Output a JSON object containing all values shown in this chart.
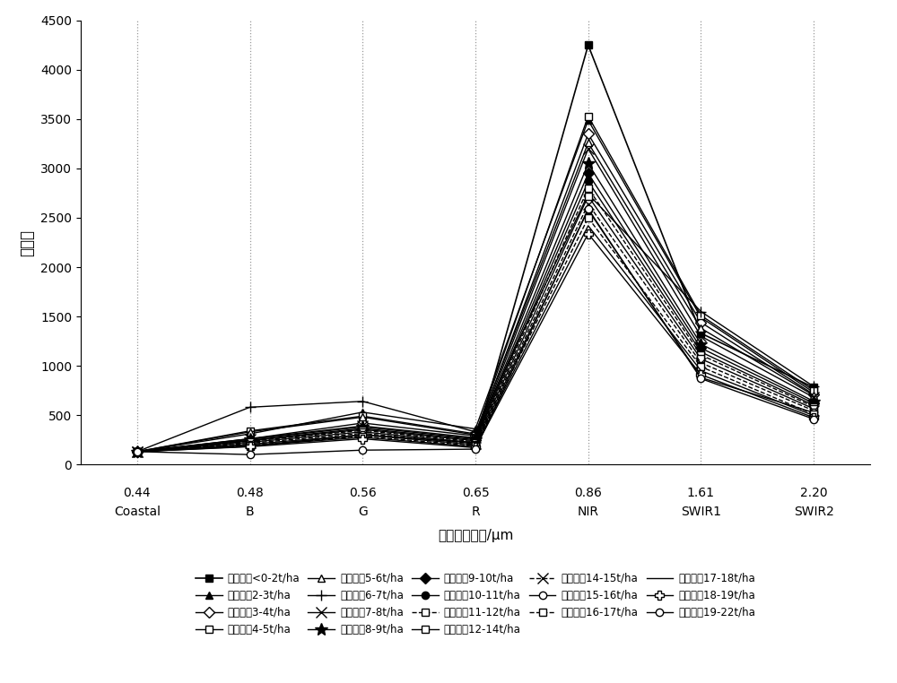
{
  "x_positions": [
    0,
    1,
    2,
    3,
    4,
    5,
    6
  ],
  "x_wavelengths": [
    "0.44",
    "0.48",
    "0.56",
    "0.65",
    "0.86",
    "1.61",
    "2.20"
  ],
  "x_bandnames": [
    "Coastal",
    "B",
    "G",
    "R",
    "NIR",
    "SWIR1",
    "SWIR2"
  ],
  "xlabel": "波段中心波长/μm",
  "ylabel": "反射率",
  "ylim": [
    0,
    4500
  ],
  "yticks": [
    0,
    500,
    1000,
    1500,
    2000,
    2500,
    3000,
    3500,
    4000,
    4500
  ],
  "series": [
    {
      "label": "叶生物量<0-2t/ha",
      "values": [
        130,
        185,
        300,
        220,
        4250,
        1330,
        780
      ],
      "marker": "s",
      "filled": true,
      "ls": "-",
      "lw": 1.2
    },
    {
      "label": "叶生物量2-3t/ha",
      "values": [
        130,
        310,
        530,
        360,
        3490,
        1490,
        730
      ],
      "marker": "^",
      "filled": true,
      "ls": "-",
      "lw": 1.0
    },
    {
      "label": "叶生物量3-4t/ha",
      "values": [
        130,
        260,
        420,
        290,
        3350,
        1440,
        710
      ],
      "marker": "D",
      "filled": false,
      "ls": "-",
      "lw": 1.0
    },
    {
      "label": "叶生物量4-5t/ha",
      "values": [
        130,
        340,
        490,
        310,
        3530,
        1510,
        750
      ],
      "marker": "s",
      "filled": false,
      "ls": "-",
      "lw": 1.0
    },
    {
      "label": "叶生物量5-6t/ha",
      "values": [
        130,
        330,
        480,
        300,
        3260,
        1380,
        700
      ],
      "marker": "^",
      "filled": false,
      "ls": "-",
      "lw": 1.0
    },
    {
      "label": "叶生物量6-7t/ha",
      "values": [
        130,
        580,
        640,
        330,
        2740,
        1550,
        790
      ],
      "marker": "+",
      "filled": true,
      "ls": "-",
      "lw": 1.0
    },
    {
      "label": "叶生物量7-8t/ha",
      "values": [
        130,
        260,
        390,
        270,
        3200,
        1300,
        680
      ],
      "marker": "x",
      "filled": true,
      "ls": "-",
      "lw": 1.0
    },
    {
      "label": "叶生物量8-9t/ha",
      "values": [
        130,
        255,
        380,
        260,
        3050,
        1220,
        640
      ],
      "marker": "*",
      "filled": true,
      "ls": "-",
      "lw": 1.0
    },
    {
      "label": "叶生物量9-10t/ha",
      "values": [
        130,
        245,
        365,
        250,
        2950,
        1180,
        620
      ],
      "marker": "D",
      "filled": true,
      "ls": "-",
      "lw": 1.0
    },
    {
      "label": "叶生物量10-11t/ha",
      "values": [
        130,
        240,
        355,
        240,
        2870,
        1140,
        600
      ],
      "marker": "o",
      "filled": true,
      "ls": "-",
      "lw": 1.0
    },
    {
      "label": "叶生物量11-12t/ha",
      "values": [
        130,
        235,
        345,
        230,
        2800,
        1110,
        585
      ],
      "marker": "s",
      "filled": false,
      "ls": "--",
      "lw": 1.0
    },
    {
      "label": "叶生物量12-14t/ha",
      "values": [
        130,
        225,
        330,
        220,
        2720,
        1070,
        565
      ],
      "marker": "s",
      "filled": false,
      "ls": "-",
      "lw": 1.0
    },
    {
      "label": "叶生物量14-15t/ha",
      "values": [
        130,
        215,
        315,
        210,
        2640,
        1030,
        545
      ],
      "marker": "x",
      "filled": true,
      "ls": "--",
      "lw": 1.0
    },
    {
      "label": "叶生物量15-16t/ha",
      "values": [
        130,
        205,
        300,
        200,
        2580,
        880,
        525
      ],
      "marker": "o",
      "filled": false,
      "ls": "-",
      "lw": 1.0
    },
    {
      "label": "叶生物量16-17t/ha",
      "values": [
        130,
        195,
        285,
        190,
        2500,
        990,
        510
      ],
      "marker": "s",
      "filled": false,
      "ls": "--",
      "lw": 1.0
    },
    {
      "label": "叶生物量17-18t/ha",
      "values": [
        130,
        190,
        275,
        180,
        2420,
        950,
        495
      ],
      "marker": "None",
      "filled": true,
      "ls": "-",
      "lw": 1.0
    },
    {
      "label": "叶生物量18-19t/ha",
      "values": [
        130,
        180,
        260,
        170,
        2340,
        910,
        475
      ],
      "marker": "P",
      "filled": false,
      "ls": "-",
      "lw": 1.0
    },
    {
      "label": "叶生物量19-22t/ha",
      "values": [
        130,
        100,
        145,
        155,
        2590,
        870,
        460
      ],
      "marker": "o",
      "filled": false,
      "ls": "-",
      "lw": 1.0
    }
  ],
  "legend_ncol": 5,
  "legend_fontsize": 8.5,
  "tick_fontsize": 10,
  "axis_label_fontsize": 11,
  "ylabel_fontsize": 12
}
